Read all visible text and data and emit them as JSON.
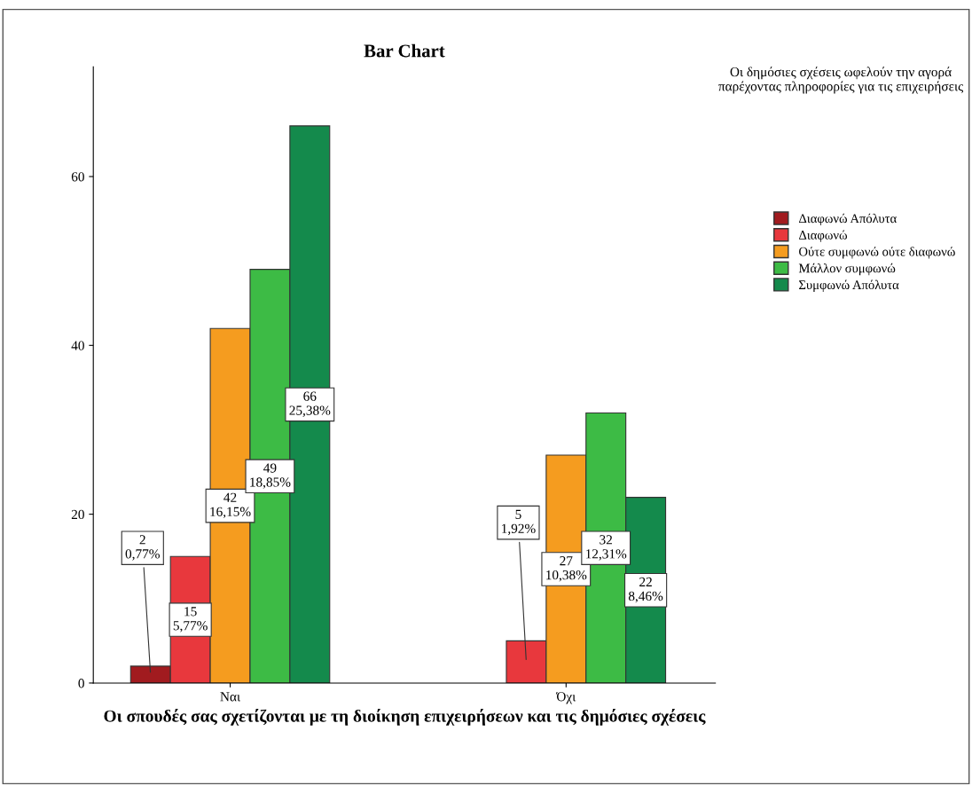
{
  "chart_data": {
    "type": "bar",
    "title": "Bar Chart",
    "xlabel": "Οι σπουδές σας σχετίζονται με τη διοίκηση επιχειρήσεων και τις δημόσιες σχέσεις",
    "legend_title": "Οι δημόσιες σχέσεις ωφελούν την αγορά παρέχοντας πληροφορίες για τις επιχειρήσεις",
    "categories": [
      "Ναι",
      "Όχι"
    ],
    "ylim": [
      0,
      73
    ],
    "yticks": [
      0,
      20,
      40,
      60
    ],
    "grid": false,
    "legend": "top right",
    "series": [
      {
        "name": "Διαφωνώ Απόλυτα",
        "color": "#a11b1f",
        "values": [
          2,
          null
        ],
        "value_labels": [
          "2\n0,77%",
          null
        ]
      },
      {
        "name": "Διαφωνώ",
        "color": "#e8383d",
        "values": [
          15,
          5
        ],
        "value_labels": [
          "15\n5,77%",
          "5\n1,92%"
        ]
      },
      {
        "name": "Ούτε συμφωνώ ούτε διαφωνώ",
        "color": "#f59c1f",
        "values": [
          42,
          27
        ],
        "value_labels": [
          "42\n16,15%",
          "27\n10,38%"
        ]
      },
      {
        "name": "Μάλλον συμφωνώ",
        "color": "#3dbb45",
        "values": [
          49,
          32
        ],
        "value_labels": [
          "49\n18,85%",
          "32\n12,31%"
        ]
      },
      {
        "name": "Συμφωνώ Απόλυτα",
        "color": "#148a4c",
        "values": [
          66,
          22
        ],
        "value_labels": [
          "66\n25,38%",
          "22\n8,46%"
        ]
      }
    ]
  }
}
